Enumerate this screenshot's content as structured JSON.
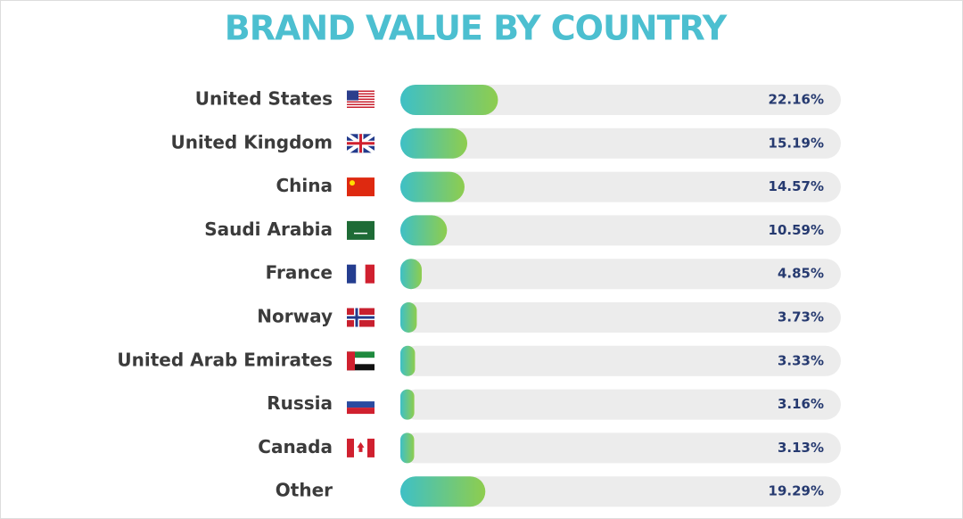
{
  "chart_data": {
    "type": "bar",
    "orientation": "horizontal",
    "title": "BRAND VALUE BY COUNTRY",
    "categories": [
      "United States",
      "United Kingdom",
      "China",
      "Saudi Arabia",
      "France",
      "Norway",
      "United Arab Emirates",
      "Russia",
      "Canada",
      "Other"
    ],
    "values": [
      22.16,
      15.19,
      14.57,
      10.59,
      4.85,
      3.73,
      3.33,
      3.16,
      3.13,
      19.29
    ],
    "value_labels": [
      "22.16%",
      "15.19%",
      "14.57%",
      "10.59%",
      "4.85%",
      "3.73%",
      "3.33%",
      "3.16%",
      "3.13%",
      "19.29%"
    ],
    "xlim": [
      0,
      100
    ],
    "colors": [
      "#3ec0c6",
      "#8ecd4e"
    ]
  }
}
